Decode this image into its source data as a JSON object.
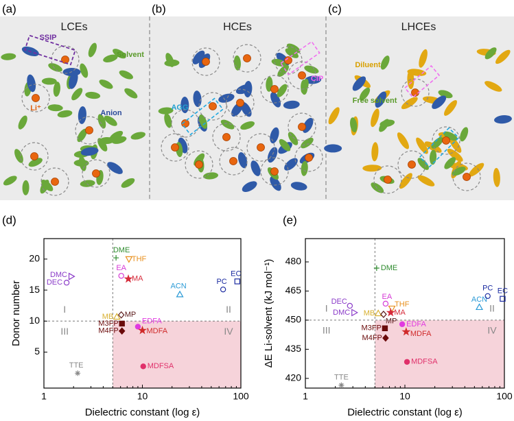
{
  "schematic": {
    "panels": [
      {
        "label": "(a)",
        "title": "LCEs",
        "notes": [
          "SSIP",
          "Solvent",
          "Li⁺",
          "Anion"
        ]
      },
      {
        "label": "(b)",
        "title": "HCEs",
        "notes": [
          "AGG",
          "CIP"
        ]
      },
      {
        "label": "(c)",
        "title": "LHCEs",
        "notes": [
          "Diluent",
          "Free solvent"
        ]
      }
    ]
  },
  "chart_data": [
    {
      "type": "scatter",
      "panel_label": "(d)",
      "xlabel": "Dielectric constant (log ε)",
      "ylabel": "Donor number",
      "log_x": true,
      "xlim": [
        1,
        100
      ],
      "xticks": [
        1,
        10,
        100
      ],
      "ylim": [
        -0.8,
        23.3
      ],
      "yticks": [
        5,
        10,
        15,
        20
      ],
      "divider_x": 5,
      "divider_y": 10,
      "shade_color": "#f6d3da",
      "quadrants": [
        "I",
        "II",
        "III",
        "IV"
      ],
      "series": [
        {
          "name": "DME",
          "color": "#2e8b2e",
          "marker": "plus",
          "x": [
            5.4
          ],
          "y": [
            20.2
          ]
        },
        {
          "name": "THF",
          "color": "#e8901e",
          "marker": "tri-down-open",
          "x": [
            7.3
          ],
          "y": [
            20
          ]
        },
        {
          "name": "EA",
          "color": "#d63ad6",
          "marker": "circle-open",
          "x": [
            6.1
          ],
          "y": [
            17.3
          ]
        },
        {
          "name": "MA",
          "color": "#d62a3a",
          "marker": "star",
          "x": [
            7.2
          ],
          "y": [
            16.8
          ]
        },
        {
          "name": "DMC",
          "color": "#8a3ac8",
          "marker": "tri-right-open",
          "x": [
            1.9
          ],
          "y": [
            17.2
          ]
        },
        {
          "name": "DEC",
          "color": "#8a3ac8",
          "marker": "circle-open",
          "x": [
            1.7
          ],
          "y": [
            16.2
          ]
        },
        {
          "name": "ACN",
          "color": "#2a9ad6",
          "marker": "tri-up-open",
          "x": [
            24
          ],
          "y": [
            14.3
          ]
        },
        {
          "name": "PC",
          "color": "#1a2aa0",
          "marker": "circle-open",
          "x": [
            66
          ],
          "y": [
            15.1
          ]
        },
        {
          "name": "EC",
          "color": "#1a2aa0",
          "marker": "square-open",
          "x": [
            92
          ],
          "y": [
            16.4
          ]
        },
        {
          "name": "MB",
          "color": "#d8b030",
          "marker": "tri-up-open",
          "x": [
            5.5
          ],
          "y": [
            10.7
          ]
        },
        {
          "name": "MP",
          "color": "#5a1a1a",
          "marker": "diamond-open",
          "x": [
            6.1
          ],
          "y": [
            11
          ]
        },
        {
          "name": "EDFA",
          "color": "#e03ae0",
          "marker": "circle",
          "x": [
            9
          ],
          "y": [
            9.1
          ]
        },
        {
          "name": "MDFA",
          "color": "#d02a2a",
          "marker": "star",
          "x": [
            10
          ],
          "y": [
            8.5
          ]
        },
        {
          "name": "M3FP",
          "color": "#6a0a0a",
          "marker": "square",
          "x": [
            6.2
          ],
          "y": [
            9.6
          ]
        },
        {
          "name": "M4FP",
          "color": "#6a0a0a",
          "marker": "diamond",
          "x": [
            6.2
          ],
          "y": [
            8.4
          ]
        },
        {
          "name": "MDFSA",
          "color": "#e0306a",
          "marker": "circle",
          "x": [
            10.2
          ],
          "y": [
            2.7
          ]
        },
        {
          "name": "TTE",
          "color": "#888888",
          "marker": "asterisk",
          "x": [
            2.2
          ],
          "y": [
            1.6
          ]
        }
      ]
    },
    {
      "type": "scatter",
      "panel_label": "(e)",
      "xlabel": "Dielectric constant (log ε)",
      "ylabel": "ΔE Li-solvent (kJ mol⁻¹)",
      "log_x": true,
      "xlim": [
        1,
        100
      ],
      "xticks": [
        1,
        10,
        100
      ],
      "ylim": [
        415,
        492
      ],
      "yticks": [
        420,
        435,
        450,
        465,
        480
      ],
      "divider_x": 5,
      "divider_y": 450,
      "shade_color": "#f6d3da",
      "quadrants": [
        "I",
        "II",
        "III",
        "IV"
      ],
      "series": [
        {
          "name": "DME",
          "color": "#2e8b2e",
          "marker": "plus",
          "x": [
            5.2
          ],
          "y": [
            476.8
          ]
        },
        {
          "name": "THF",
          "color": "#e8901e",
          "marker": "tri-down-open",
          "x": [
            7.4
          ],
          "y": [
            456
          ]
        },
        {
          "name": "EA",
          "color": "#d63ad6",
          "marker": "circle-open",
          "x": [
            6.4
          ],
          "y": [
            458.5
          ]
        },
        {
          "name": "MA",
          "color": "#d62a3a",
          "marker": "star",
          "x": [
            7.2
          ],
          "y": [
            453.9
          ]
        },
        {
          "name": "DMC",
          "color": "#8a3ac8",
          "marker": "tri-right-open",
          "x": [
            3.1
          ],
          "y": [
            453.9
          ]
        },
        {
          "name": "DEC",
          "color": "#8a3ac8",
          "marker": "circle-open",
          "x": [
            2.8
          ],
          "y": [
            457.4
          ]
        },
        {
          "name": "ACN",
          "color": "#2a9ad6",
          "marker": "tri-up-open",
          "x": [
            56
          ],
          "y": [
            456.7
          ]
        },
        {
          "name": "PC",
          "color": "#1a2aa0",
          "marker": "circle-open",
          "x": [
            68
          ],
          "y": [
            462.4
          ]
        },
        {
          "name": "EC",
          "color": "#1a2aa0",
          "marker": "square-open",
          "x": [
            96
          ],
          "y": [
            461
          ]
        },
        {
          "name": "MB",
          "color": "#d8b030",
          "marker": "tri-up-open",
          "x": [
            5.4
          ],
          "y": [
            453.5
          ]
        },
        {
          "name": "MP",
          "color": "#5a1a1a",
          "marker": "diamond-open",
          "x": [
            6.1
          ],
          "y": [
            453
          ]
        },
        {
          "name": "EDFA",
          "color": "#e03ae0",
          "marker": "circle",
          "x": [
            9.4
          ],
          "y": [
            447.9
          ]
        },
        {
          "name": "MDFA",
          "color": "#d02a2a",
          "marker": "star",
          "x": [
            10.3
          ],
          "y": [
            444
          ]
        },
        {
          "name": "M3FP",
          "color": "#6a0a0a",
          "marker": "square",
          "x": [
            6.3
          ],
          "y": [
            445.8
          ]
        },
        {
          "name": "M4FP",
          "color": "#6a0a0a",
          "marker": "diamond",
          "x": [
            6.4
          ],
          "y": [
            440.8
          ]
        },
        {
          "name": "MDFSA",
          "color": "#e0306a",
          "marker": "circle",
          "x": [
            10.5
          ],
          "y": [
            428.5
          ]
        },
        {
          "name": "TTE",
          "color": "#888888",
          "marker": "asterisk",
          "x": [
            2.3
          ],
          "y": [
            416.5
          ]
        }
      ]
    }
  ]
}
